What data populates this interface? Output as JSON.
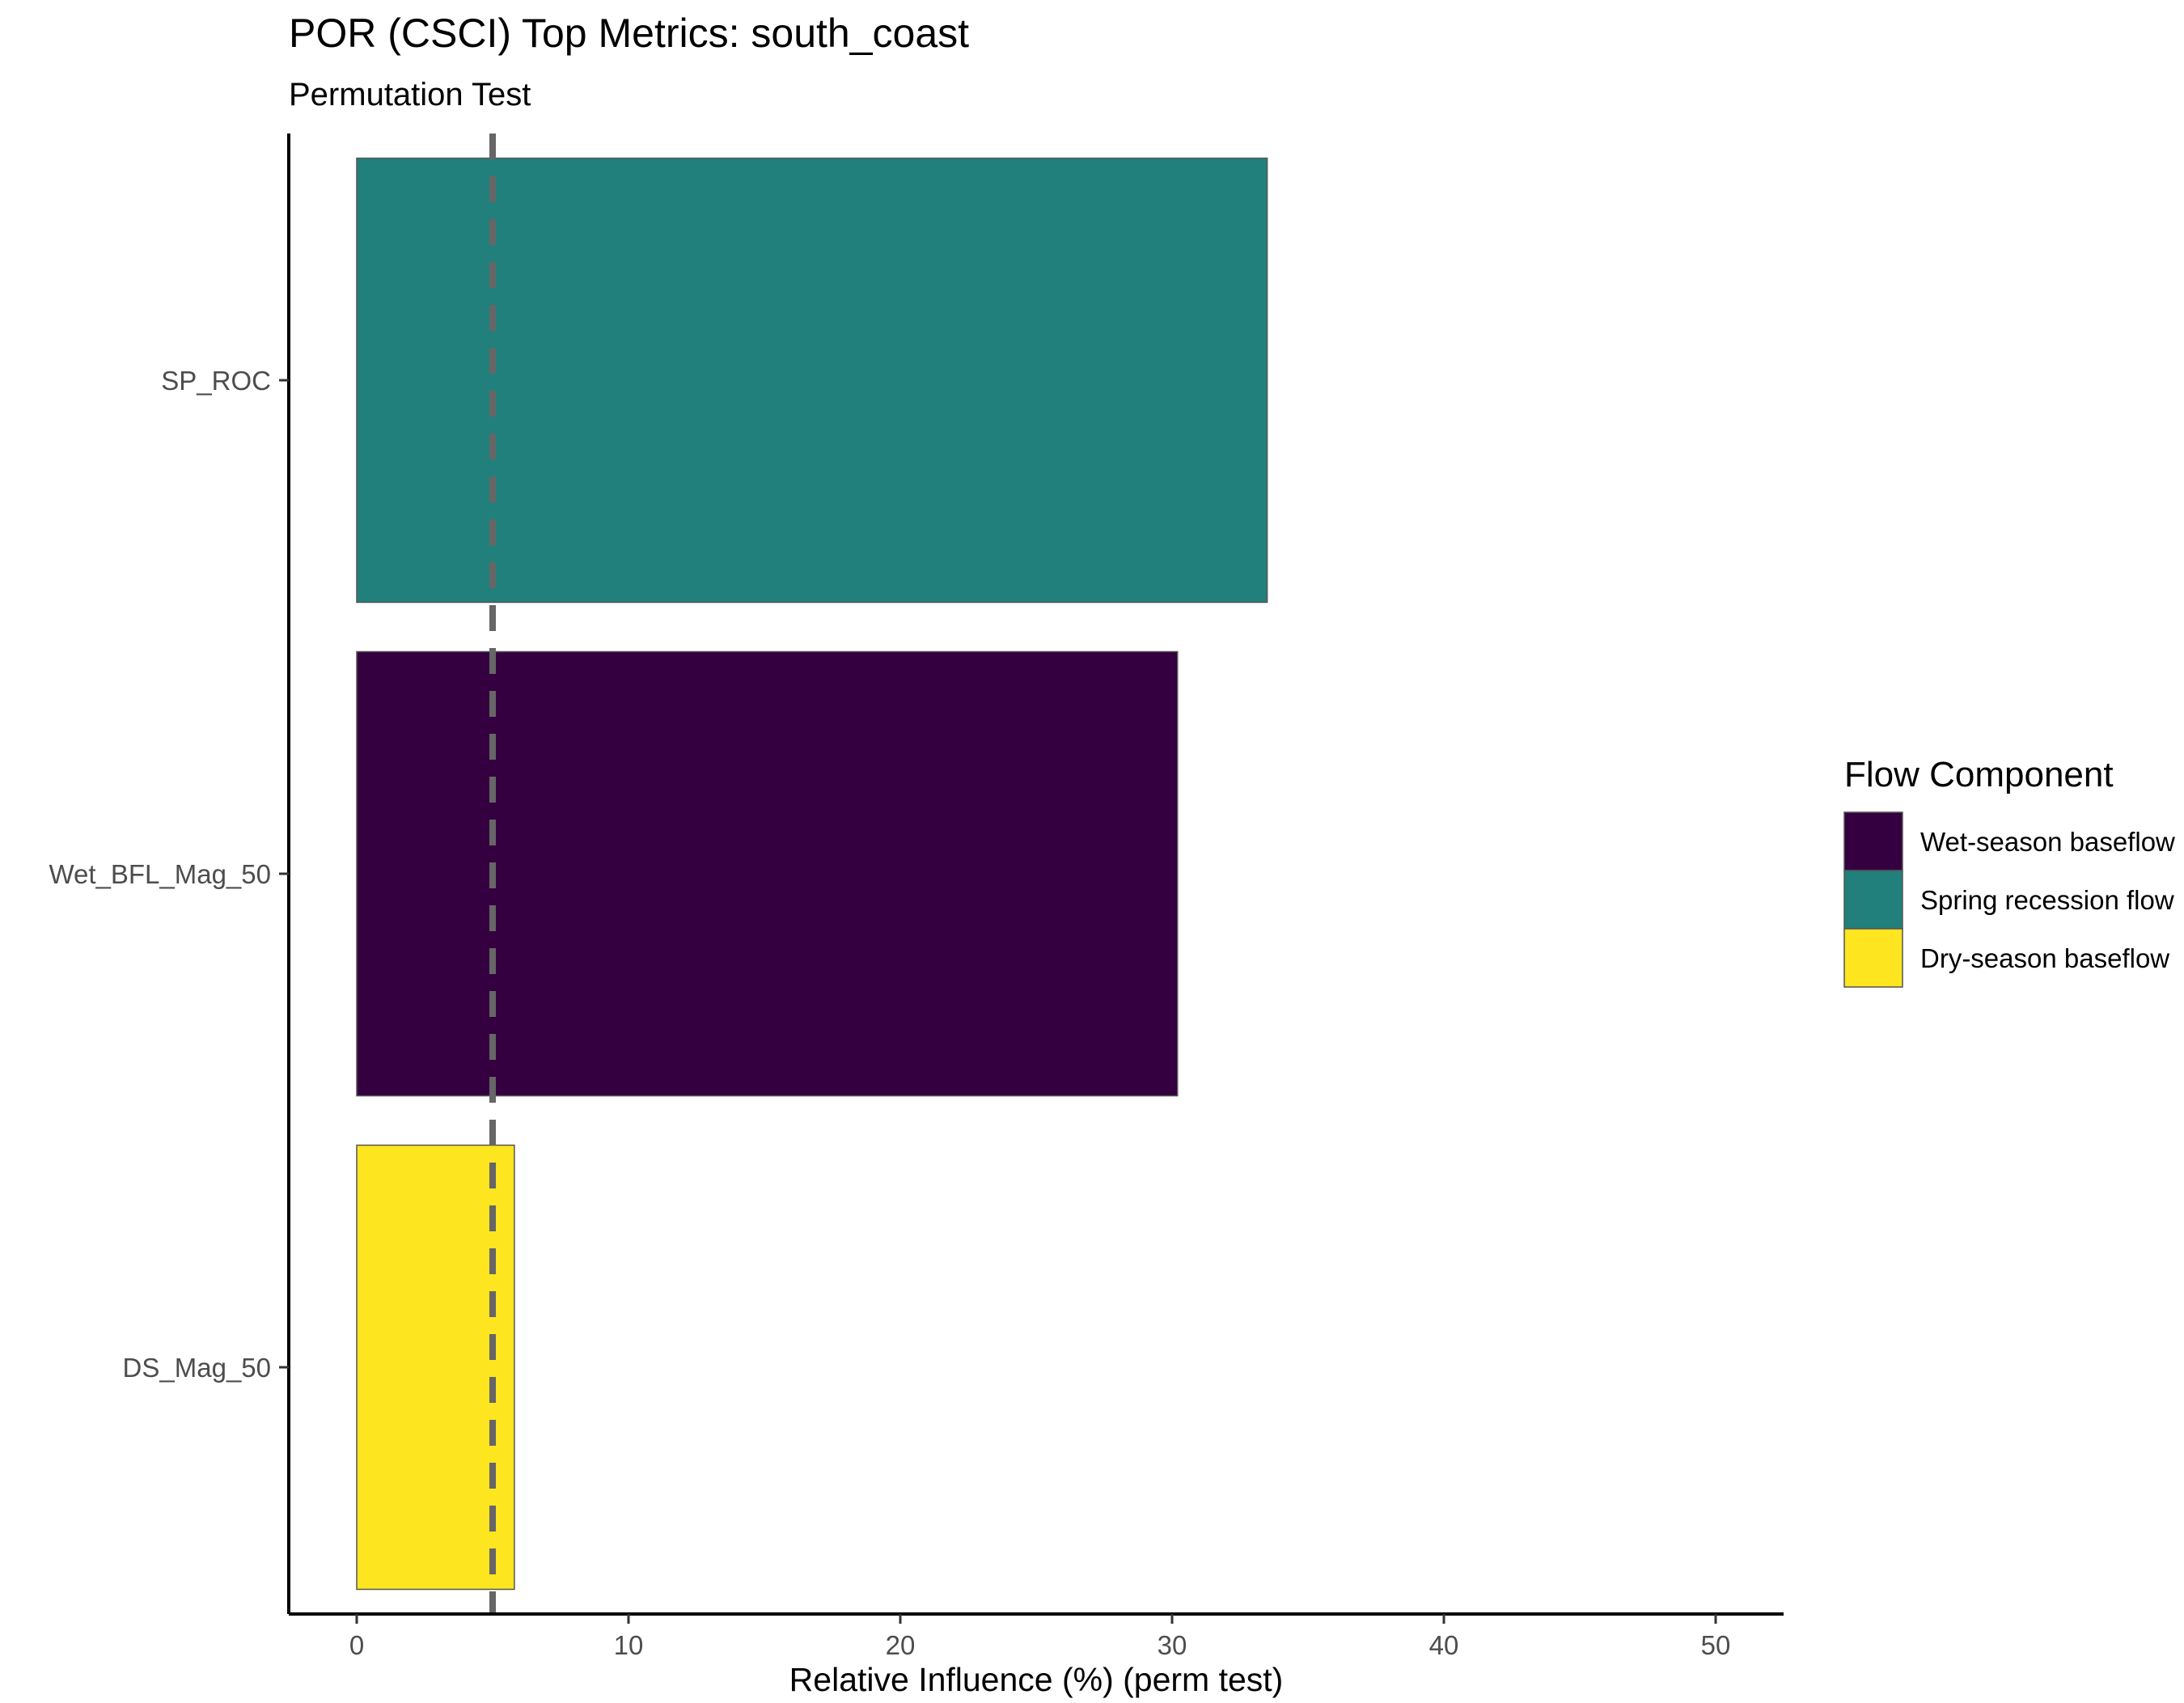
{
  "chart_data": {
    "type": "bar",
    "orientation": "horizontal",
    "title": "POR (CSCI) Top Metrics: south_coast",
    "subtitle": "Permutation Test",
    "xlabel": "Relative Influence (%) (perm test)",
    "ylabel": "",
    "xlim": [
      -2.5,
      52.5
    ],
    "x_ticks": [
      0,
      10,
      20,
      30,
      40,
      50
    ],
    "categories": [
      "SP_ROC",
      "Wet_BFL_Mag_50",
      "DS_Mag_50"
    ],
    "values": [
      33.5,
      30.2,
      5.8
    ],
    "bar_groups": [
      "Spring recession flow",
      "Wet-season baseflow",
      "Dry-season baseflow"
    ],
    "reference_line": {
      "x": 5,
      "style": "dashed",
      "color": "#666666"
    },
    "legend": {
      "title": "Flow Component",
      "position": "right",
      "entries": [
        {
          "label": "Wet-season baseflow",
          "color": "#35003F"
        },
        {
          "label": "Spring recession flow",
          "color": "#21807B"
        },
        {
          "label": "Dry-season baseflow",
          "color": "#FDE51F"
        }
      ]
    },
    "grid": false
  }
}
